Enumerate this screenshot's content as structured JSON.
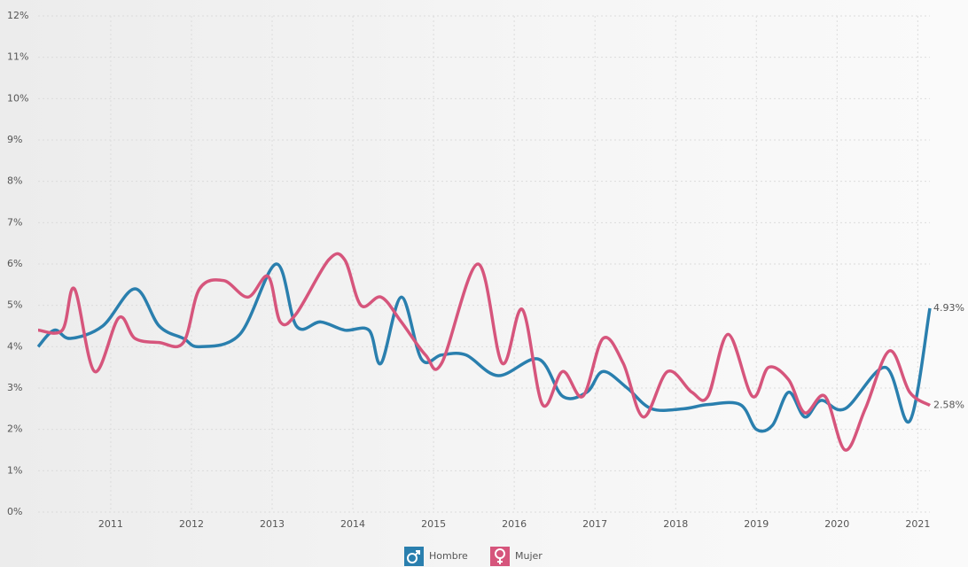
{
  "chart_data": {
    "type": "line",
    "xlim": [
      2010.1,
      2021.15
    ],
    "xticks": [
      2011,
      2012,
      2013,
      2014,
      2015,
      2016,
      2017,
      2018,
      2019,
      2020,
      2021
    ],
    "ylim": [
      0,
      12
    ],
    "yticks": [
      {
        "value": 0,
        "label": "0%"
      },
      {
        "value": 1,
        "label": "1%"
      },
      {
        "value": 2,
        "label": "2%"
      },
      {
        "value": 3,
        "label": "3%"
      },
      {
        "value": 4,
        "label": "4%"
      },
      {
        "value": 5,
        "label": "5%"
      },
      {
        "value": 6,
        "label": "6%"
      },
      {
        "value": 7,
        "label": "7%"
      },
      {
        "value": 8,
        "label": "8%"
      },
      {
        "value": 9,
        "label": "9%"
      },
      {
        "value": 10,
        "label": "10%"
      },
      {
        "value": 11,
        "label": "11%"
      },
      {
        "value": 12,
        "label": "12%"
      }
    ],
    "grid": true,
    "legend": "bottom",
    "series": [
      {
        "name": "Hombre",
        "color": "#2a7fae",
        "x": [
          2010.1,
          2010.3,
          2010.5,
          2010.9,
          2011.3,
          2011.6,
          2011.9,
          2012.1,
          2012.6,
          2013.05,
          2013.3,
          2013.6,
          2013.9,
          2014.2,
          2014.35,
          2014.6,
          2014.85,
          2015.1,
          2015.4,
          2015.8,
          2016.3,
          2016.6,
          2016.9,
          2017.1,
          2017.4,
          2017.7,
          2018.1,
          2018.4,
          2018.8,
          2019.0,
          2019.2,
          2019.4,
          2019.6,
          2019.8,
          2020.1,
          2020.6,
          2020.9,
          2021.15
        ],
        "values": [
          4.0,
          4.4,
          4.2,
          4.5,
          5.4,
          4.5,
          4.2,
          4.0,
          4.3,
          6.0,
          4.5,
          4.6,
          4.4,
          4.4,
          3.6,
          5.2,
          3.7,
          3.8,
          3.8,
          3.3,
          3.7,
          2.8,
          2.9,
          3.4,
          3.0,
          2.5,
          2.5,
          2.6,
          2.6,
          2.0,
          2.1,
          2.9,
          2.3,
          2.7,
          2.5,
          3.5,
          2.2,
          4.93
        ],
        "value_labels": [
          null,
          null,
          null,
          null,
          null,
          null,
          null,
          null,
          null,
          null,
          null,
          null,
          null,
          null,
          null,
          null,
          null,
          null,
          null,
          null,
          null,
          null,
          null,
          null,
          null,
          null,
          null,
          null,
          null,
          null,
          null,
          null,
          null,
          null,
          null,
          null,
          null,
          "4.93%"
        ]
      },
      {
        "name": "Mujer",
        "color": "#d6557c",
        "x": [
          2010.1,
          2010.4,
          2010.55,
          2010.8,
          2011.1,
          2011.3,
          2011.6,
          2011.9,
          2012.1,
          2012.4,
          2012.7,
          2012.95,
          2013.1,
          2013.3,
          2013.7,
          2013.9,
          2014.1,
          2014.35,
          2014.6,
          2014.9,
          2015.1,
          2015.55,
          2015.85,
          2016.1,
          2016.35,
          2016.6,
          2016.85,
          2017.1,
          2017.35,
          2017.6,
          2017.9,
          2018.2,
          2018.4,
          2018.65,
          2018.95,
          2019.15,
          2019.4,
          2019.6,
          2019.85,
          2020.1,
          2020.35,
          2020.65,
          2020.9,
          2021.15
        ],
        "values": [
          4.4,
          4.4,
          5.4,
          3.4,
          4.7,
          4.2,
          4.1,
          4.1,
          5.4,
          5.6,
          5.2,
          5.7,
          4.6,
          4.8,
          6.1,
          6.1,
          5.0,
          5.2,
          4.6,
          3.8,
          3.6,
          6.0,
          3.6,
          4.9,
          2.6,
          3.4,
          2.8,
          4.2,
          3.6,
          2.3,
          3.4,
          2.9,
          2.8,
          4.3,
          2.8,
          3.5,
          3.2,
          2.4,
          2.8,
          1.5,
          2.5,
          3.9,
          2.9,
          2.58
        ],
        "value_labels": [
          null,
          null,
          null,
          null,
          null,
          null,
          null,
          null,
          null,
          null,
          null,
          null,
          null,
          null,
          null,
          null,
          null,
          null,
          null,
          null,
          null,
          null,
          null,
          null,
          null,
          null,
          null,
          null,
          null,
          null,
          null,
          null,
          null,
          null,
          null,
          null,
          null,
          null,
          null,
          null,
          null,
          null,
          null,
          "2.58%"
        ]
      }
    ]
  }
}
